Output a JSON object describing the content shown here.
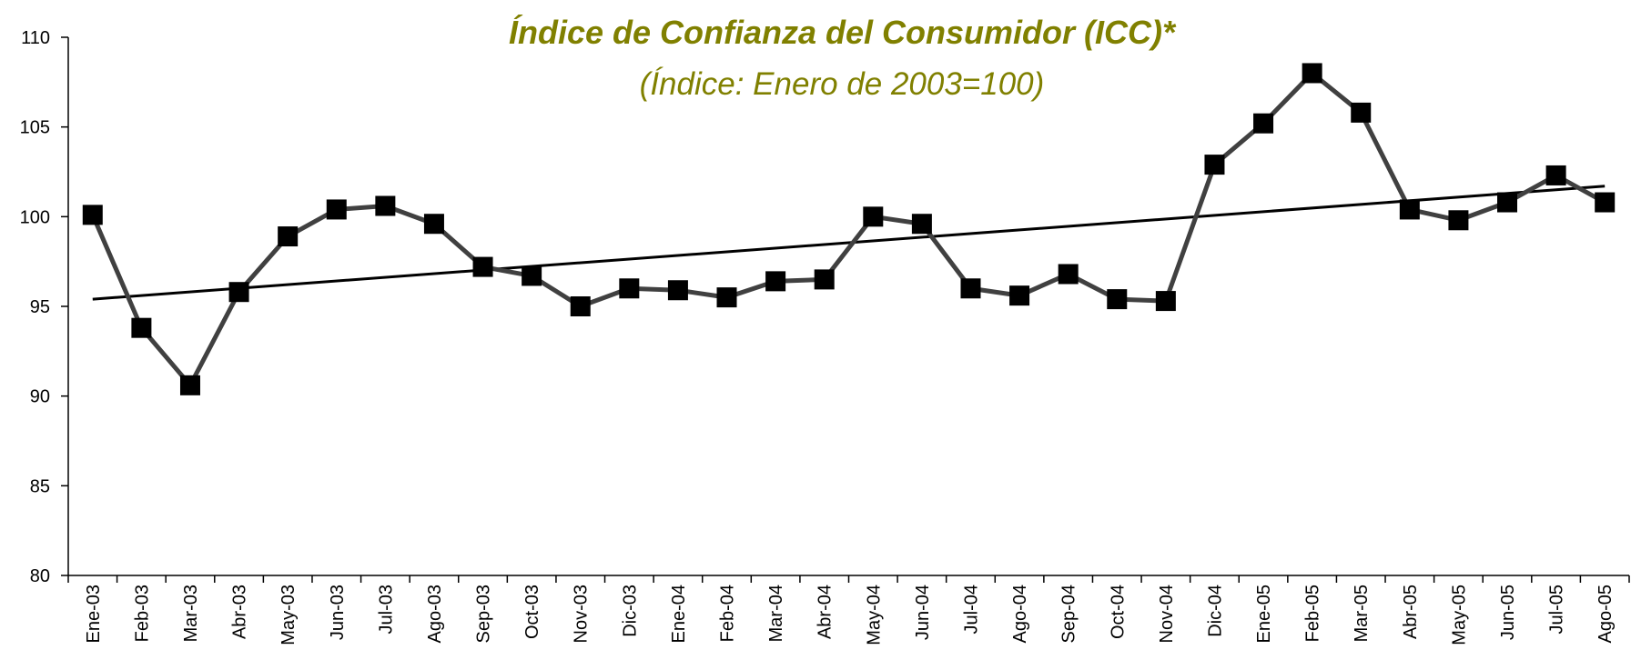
{
  "chart_data": {
    "type": "line",
    "title": "Índice de Confianza del Consumidor (ICC)*",
    "subtitle": "(Índice: Enero de 2003=100)",
    "title_color": "#808000",
    "categories": [
      "Ene-03",
      "Feb-03",
      "Mar-03",
      "Abr-03",
      "May-03",
      "Jun-03",
      "Jul-03",
      "Ago-03",
      "Sep-03",
      "Oct-03",
      "Nov-03",
      "Dic-03",
      "Ene-04",
      "Feb-04",
      "Mar-04",
      "Abr-04",
      "May-04",
      "Jun-04",
      "Jul-04",
      "Ago-04",
      "Sep-04",
      "Oct-04",
      "Nov-04",
      "Dic-04",
      "Ene-05",
      "Feb-05",
      "Mar-05",
      "Abr-05",
      "May-05",
      "Jun-05",
      "Jul-05",
      "Ago-05"
    ],
    "series": [
      {
        "color": "#404040",
        "values": [
          100.1,
          93.8,
          90.6,
          95.8,
          98.9,
          100.4,
          100.6,
          99.6,
          97.2,
          96.7,
          95.0,
          96.0,
          95.9,
          95.5,
          96.4,
          96.5,
          100.0,
          99.6,
          96.0,
          95.6,
          96.8,
          95.4,
          95.3,
          102.9,
          105.2,
          108.0,
          105.8,
          100.4,
          99.8,
          100.8,
          102.3,
          100.8
        ]
      }
    ],
    "trendline": {
      "color": "#000000",
      "start": 95.4,
      "end": 101.7
    },
    "ylim": [
      80,
      110
    ],
    "yticks": [
      80,
      85,
      90,
      95,
      100,
      105,
      110
    ],
    "grid": false
  }
}
